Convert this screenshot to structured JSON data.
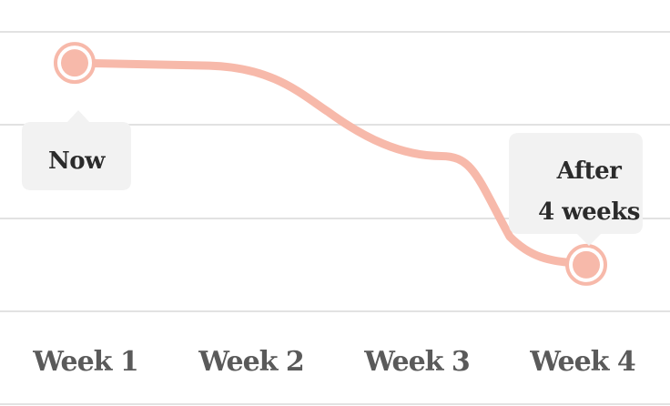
{
  "chart_data": {
    "type": "line",
    "categories": [
      "Week 1",
      "Week 2",
      "Week 3",
      "Week 4"
    ],
    "values": [
      4,
      3.95,
      2.5,
      0.75
    ],
    "ylim": [
      0,
      4.5
    ],
    "grid": true,
    "annotations": [
      {
        "category": "Week 1",
        "text": "Now"
      },
      {
        "category": "Week 4",
        "text_lines": [
          "After",
          "4 weeks"
        ]
      }
    ]
  },
  "colors": {
    "line": "#f7b9aa",
    "grid": "#e2e2e2",
    "callout_bg": "#f2f2f2",
    "tick_text": "#5a5a5a"
  }
}
